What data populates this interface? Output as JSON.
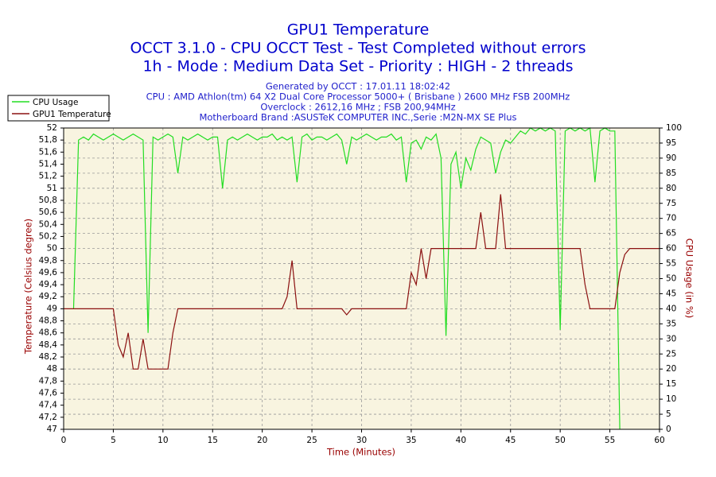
{
  "chart_data": {
    "type": "line",
    "title": "GPU1 Temperature",
    "subtitle": [
      "OCCT 3.1.0 - CPU OCCT Test - Test Completed without errors",
      "1h - Mode : Medium Data Set - Priority : HIGH - 2 threads"
    ],
    "info": [
      "Generated by OCCT : 17.01.11 18:02:42",
      "CPU : AMD Athlon(tm) 64 X2 Dual Core Processor 5000+ ( Brisbane ) 2600 MHz FSB 200MHz",
      "Overclock : 2612,16 MHz ; FSB 200,94MHz",
      "Motherboard Brand :ASUSTeK COMPUTER INC.,Serie :M2N-MX SE Plus"
    ],
    "xlabel": "Time (Minutes)",
    "ylabel": "Temperature (Celsius degree)",
    "y2label": "CPU Usage (in %)",
    "x": [
      0,
      0.5,
      1,
      1.5,
      2,
      2.5,
      3,
      3.5,
      4,
      4.5,
      5,
      5.5,
      6,
      6.5,
      7,
      7.5,
      8,
      8.5,
      9,
      9.5,
      10,
      10.5,
      11,
      11.5,
      12,
      12.5,
      13,
      13.5,
      14,
      14.5,
      15,
      15.5,
      16,
      16.5,
      17,
      17.5,
      18,
      18.5,
      19,
      19.5,
      20,
      20.5,
      21,
      21.5,
      22,
      22.5,
      23,
      23.5,
      24,
      24.5,
      25,
      25.5,
      26,
      26.5,
      27,
      27.5,
      28,
      28.5,
      29,
      29.5,
      30,
      30.5,
      31,
      31.5,
      32,
      32.5,
      33,
      33.5,
      34,
      34.5,
      35,
      35.5,
      36,
      36.5,
      37,
      37.5,
      38,
      38.5,
      39,
      39.5,
      40,
      40.5,
      41,
      41.5,
      42,
      42.5,
      43,
      43.5,
      44,
      44.5,
      45,
      45.5,
      46,
      46.5,
      47,
      47.5,
      48,
      48.5,
      49,
      49.5,
      50,
      50.5,
      51,
      51.5,
      52,
      52.5,
      53,
      53.5,
      54,
      54.5,
      55,
      55.5,
      56,
      56.5,
      57,
      57.5,
      58,
      58.5,
      59,
      59.5,
      60
    ],
    "series": [
      {
        "name": "CPU Usage",
        "color": "#22dd22",
        "axis": "y2",
        "values": [
          null,
          null,
          40,
          96,
          97,
          96,
          98,
          97,
          96,
          97,
          98,
          97,
          96,
          97,
          98,
          97,
          96,
          32,
          97,
          96,
          97,
          98,
          97,
          85,
          97,
          96,
          97,
          98,
          97,
          96,
          97,
          97,
          80,
          96,
          97,
          96,
          97,
          98,
          97,
          96,
          97,
          97,
          98,
          96,
          97,
          96,
          97,
          82,
          97,
          98,
          96,
          97,
          97,
          96,
          97,
          98,
          96,
          88,
          97,
          96,
          97,
          98,
          97,
          96,
          97,
          97,
          98,
          96,
          97,
          82,
          95,
          96,
          93,
          97,
          96,
          98,
          90,
          31,
          88,
          92,
          80,
          90,
          86,
          93,
          97,
          96,
          95,
          85,
          92,
          96,
          95,
          97,
          99,
          98,
          100,
          99,
          100,
          99,
          100,
          99,
          33,
          99,
          100,
          99,
          100,
          99,
          100,
          82,
          99,
          100,
          99,
          99,
          0,
          null,
          null,
          null,
          null,
          null,
          null,
          null,
          null
        ]
      },
      {
        "name": "GPU1 Temperature",
        "color": "#8b1010",
        "values": [
          49,
          49,
          49,
          49,
          49,
          49,
          49,
          49,
          49,
          49,
          49,
          48.4,
          48.2,
          48.6,
          48,
          48,
          48.5,
          48,
          48,
          48,
          48,
          48,
          48.6,
          49,
          49,
          49,
          49,
          49,
          49,
          49,
          49,
          49,
          49,
          49,
          49,
          49,
          49,
          49,
          49,
          49,
          49,
          49,
          49,
          49,
          49,
          49.2,
          49.8,
          49,
          49,
          49,
          49,
          49,
          49,
          49,
          49,
          49,
          49,
          48.9,
          49,
          49,
          49,
          49,
          49,
          49,
          49,
          49,
          49,
          49,
          49,
          49,
          49.6,
          49.4,
          50,
          49.5,
          50,
          50,
          50,
          50,
          50,
          50,
          50,
          50,
          50,
          50,
          50.6,
          50,
          50,
          50,
          50.9,
          50,
          50,
          50,
          50,
          50,
          50,
          50,
          50,
          50,
          50,
          50,
          50,
          50,
          50,
          50,
          50,
          49.4,
          49,
          49,
          49,
          49,
          49,
          49,
          49.6,
          49.9,
          50,
          50,
          50,
          50,
          50,
          50,
          50
        ]
      }
    ],
    "xlim": [
      0,
      60
    ],
    "xticks": [
      0,
      5,
      10,
      15,
      20,
      25,
      30,
      35,
      40,
      45,
      50,
      55,
      60
    ],
    "ylim": [
      47,
      52
    ],
    "yticks": [
      47,
      {
        "value": 47.2,
        "label": "47,2"
      },
      {
        "value": 47.4,
        "label": "47,4"
      },
      {
        "value": 47.6,
        "label": "47,6"
      },
      {
        "value": 47.8,
        "label": "47,8"
      },
      48,
      {
        "value": 48.2,
        "label": "48,2"
      },
      {
        "value": 48.4,
        "label": "48,4"
      },
      {
        "value": 48.6,
        "label": "48,6"
      },
      {
        "value": 48.8,
        "label": "48,8"
      },
      49,
      {
        "value": 49.2,
        "label": "49,2"
      },
      {
        "value": 49.4,
        "label": "49,4"
      },
      {
        "value": 49.6,
        "label": "49,6"
      },
      {
        "value": 49.8,
        "label": "49,8"
      },
      50,
      {
        "value": 50.2,
        "label": "50,2"
      },
      {
        "value": 50.4,
        "label": "50,4"
      },
      {
        "value": 50.6,
        "label": "50,6"
      },
      {
        "value": 50.8,
        "label": "50,8"
      },
      51,
      {
        "value": 51.2,
        "label": "51,2"
      },
      {
        "value": 51.4,
        "label": "51,4"
      },
      {
        "value": 51.6,
        "label": "51,6"
      },
      {
        "value": 51.8,
        "label": "51,8"
      },
      52
    ],
    "y2lim": [
      0,
      100
    ],
    "y2ticks": [
      0,
      5,
      10,
      15,
      20,
      25,
      30,
      35,
      40,
      45,
      50,
      55,
      60,
      65,
      70,
      75,
      80,
      85,
      90,
      95,
      100
    ],
    "grid": true
  }
}
